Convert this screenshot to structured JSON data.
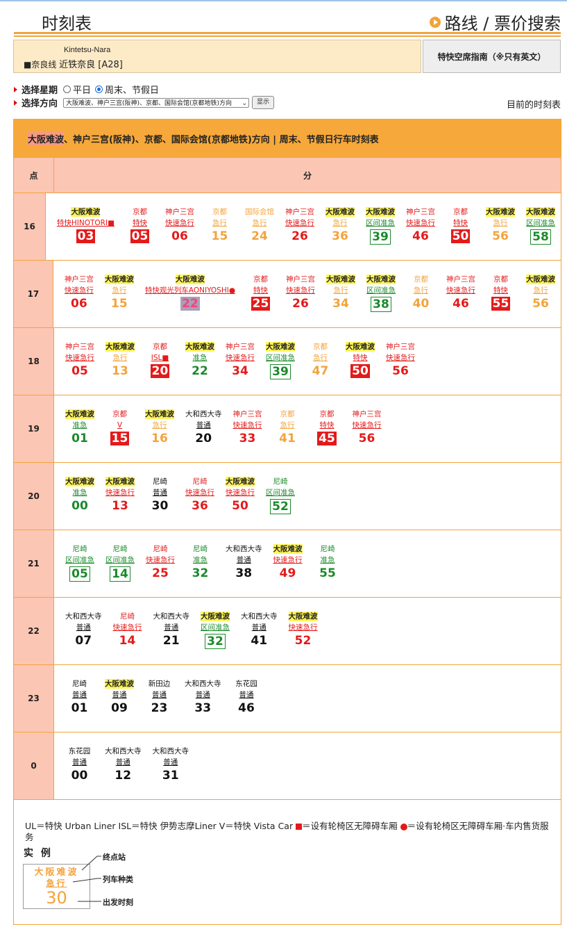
{
  "header": {
    "title": "时刻表",
    "search_link": "路线 / 票价搜索"
  },
  "station": {
    "romaji": "Kintetsu-Nara",
    "line": "■奈良线",
    "name": "近铁奈良 [A28]"
  },
  "seat_button": "特快空席指南（※只有英文）",
  "controls": {
    "day_label": "选择星期",
    "weekday": "平日",
    "weekend": "周末、节假日",
    "direction_label": "选择方向",
    "direction_value": "大阪难波、神户三宫(阪神)、京都、国际会馆(京都地铁)方向",
    "show_button": "显示",
    "current_label": "目前的时刻表"
  },
  "timetable": {
    "title_hl": "大阪难波",
    "title_rest": "、神户三宫(阪神)、京都、国际会馆(京都地铁)方向 | 周末、节假日行车时刻表",
    "hour_header": "点",
    "minute_header": "分",
    "rows": [
      {
        "hour": "16",
        "trains": [
          {
            "dest": "大阪难波",
            "hl": true,
            "type": "特快HINOTORI■",
            "min": "03",
            "c": "red",
            "s": "solidred"
          },
          {
            "dest": "京都",
            "type": "特快",
            "min": "05",
            "c": "red",
            "s": "solidred"
          },
          {
            "dest": "神户三宫",
            "type": "快速急行",
            "min": "06",
            "c": "red"
          },
          {
            "dest": "京都",
            "type": "急行",
            "min": "15",
            "c": "orange"
          },
          {
            "dest": "国际会馆",
            "type": "急行",
            "min": "24",
            "c": "orange"
          },
          {
            "dest": "神户三宫",
            "type": "快速急行",
            "min": "26",
            "c": "red"
          },
          {
            "dest": "大阪难波",
            "hl": true,
            "type": "急行",
            "min": "36",
            "c": "orange"
          },
          {
            "dest": "大阪难波",
            "hl": true,
            "type": "区间准急",
            "min": "39",
            "c": "green",
            "s": "boxg"
          },
          {
            "dest": "神户三宫",
            "type": "快速急行",
            "min": "46",
            "c": "red"
          },
          {
            "dest": "京都",
            "type": "特快",
            "min": "50",
            "c": "red",
            "s": "solidred"
          },
          {
            "dest": "大阪难波",
            "hl": true,
            "type": "急行",
            "min": "56",
            "c": "orange"
          },
          {
            "dest": "大阪难波",
            "hl": true,
            "type": "区间准急",
            "min": "58",
            "c": "green",
            "s": "boxg"
          }
        ]
      },
      {
        "hour": "17",
        "trains": [
          {
            "dest": "神户三宫",
            "type": "快速急行",
            "min": "06",
            "c": "red"
          },
          {
            "dest": "大阪难波",
            "hl": true,
            "type": "急行",
            "min": "15",
            "c": "orange"
          },
          {
            "dest": "大阪难波",
            "hl": true,
            "type": "特快观光列车AONIYOSHI●",
            "min": "22",
            "c": "red",
            "s": "grey"
          },
          {
            "dest": "京都",
            "type": "特快",
            "min": "25",
            "c": "red",
            "s": "solidred"
          },
          {
            "dest": "神户三宫",
            "type": "快速急行",
            "min": "26",
            "c": "red"
          },
          {
            "dest": "大阪难波",
            "hl": true,
            "type": "急行",
            "min": "34",
            "c": "orange"
          },
          {
            "dest": "大阪难波",
            "hl": true,
            "type": "区间准急",
            "min": "38",
            "c": "green",
            "s": "boxg"
          },
          {
            "dest": "京都",
            "type": "急行",
            "min": "40",
            "c": "orange"
          },
          {
            "dest": "神户三宫",
            "type": "快速急行",
            "min": "46",
            "c": "red"
          },
          {
            "dest": "京都",
            "type": "特快",
            "min": "55",
            "c": "red",
            "s": "solidred"
          },
          {
            "dest": "大阪难波",
            "hl": true,
            "type": "急行",
            "min": "56",
            "c": "orange"
          }
        ]
      },
      {
        "hour": "18",
        "trains": [
          {
            "dest": "神户三宫",
            "type": "快速急行",
            "min": "05",
            "c": "red"
          },
          {
            "dest": "大阪难波",
            "hl": true,
            "type": "急行",
            "min": "13",
            "c": "orange"
          },
          {
            "dest": "京都",
            "type": "ISL■",
            "min": "20",
            "c": "red",
            "s": "solidred"
          },
          {
            "dest": "大阪难波",
            "hl": true,
            "type": "准急",
            "min": "22",
            "c": "green"
          },
          {
            "dest": "神户三宫",
            "type": "快速急行",
            "min": "34",
            "c": "red"
          },
          {
            "dest": "大阪难波",
            "hl": true,
            "type": "区间准急",
            "min": "39",
            "c": "green",
            "s": "boxg"
          },
          {
            "dest": "京都",
            "type": "急行",
            "min": "47",
            "c": "orange"
          },
          {
            "dest": "大阪难波",
            "hl": true,
            "type": "特快",
            "min": "50",
            "c": "red",
            "s": "solidred"
          },
          {
            "dest": "神户三宫",
            "type": "快速急行",
            "min": "56",
            "c": "red"
          }
        ]
      },
      {
        "hour": "19",
        "trains": [
          {
            "dest": "大阪难波",
            "hl": true,
            "type": "准急",
            "min": "01",
            "c": "green"
          },
          {
            "dest": "京都",
            "type": "V",
            "min": "15",
            "c": "red",
            "s": "solidred"
          },
          {
            "dest": "大阪难波",
            "hl": true,
            "type": "急行",
            "min": "16",
            "c": "orange"
          },
          {
            "dest": "大和西大寺",
            "type": "普通",
            "min": "20",
            "c": "black"
          },
          {
            "dest": "神户三宫",
            "type": "快速急行",
            "min": "33",
            "c": "red"
          },
          {
            "dest": "京都",
            "type": "急行",
            "min": "41",
            "c": "orange"
          },
          {
            "dest": "京都",
            "type": "特快",
            "min": "45",
            "c": "red",
            "s": "solidred"
          },
          {
            "dest": "神户三宫",
            "type": "快速急行",
            "min": "56",
            "c": "red"
          }
        ]
      },
      {
        "hour": "20",
        "trains": [
          {
            "dest": "大阪难波",
            "hl": true,
            "type": "准急",
            "min": "00",
            "c": "green"
          },
          {
            "dest": "大阪难波",
            "hl": true,
            "type": "快速急行",
            "min": "13",
            "c": "red"
          },
          {
            "dest": "尼崎",
            "type": "普通",
            "min": "30",
            "c": "black"
          },
          {
            "dest": "尼崎",
            "type": "快速急行",
            "min": "36",
            "c": "red"
          },
          {
            "dest": "大阪难波",
            "hl": true,
            "type": "快速急行",
            "min": "50",
            "c": "red"
          },
          {
            "dest": "尼崎",
            "type": "区间准急",
            "min": "52",
            "c": "green",
            "s": "boxg"
          }
        ]
      },
      {
        "hour": "21",
        "trains": [
          {
            "dest": "尼崎",
            "type": "区间准急",
            "min": "05",
            "c": "green",
            "s": "boxg"
          },
          {
            "dest": "尼崎",
            "type": "区间准急",
            "min": "14",
            "c": "green",
            "s": "boxg"
          },
          {
            "dest": "尼崎",
            "type": "快速急行",
            "min": "25",
            "c": "red"
          },
          {
            "dest": "尼崎",
            "type": "准急",
            "min": "32",
            "c": "green"
          },
          {
            "dest": "大和西大寺",
            "type": "普通",
            "min": "38",
            "c": "black"
          },
          {
            "dest": "大阪难波",
            "hl": true,
            "type": "快速急行",
            "min": "49",
            "c": "red"
          },
          {
            "dest": "尼崎",
            "type": "准急",
            "min": "55",
            "c": "green"
          }
        ]
      },
      {
        "hour": "22",
        "trains": [
          {
            "dest": "大和西大寺",
            "type": "普通",
            "min": "07",
            "c": "black"
          },
          {
            "dest": "尼崎",
            "type": "快速急行",
            "min": "14",
            "c": "red"
          },
          {
            "dest": "大和西大寺",
            "type": "普通",
            "min": "21",
            "c": "black"
          },
          {
            "dest": "大阪难波",
            "hl": true,
            "type": "区间准急",
            "min": "32",
            "c": "green",
            "s": "boxg"
          },
          {
            "dest": "大和西大寺",
            "type": "普通",
            "min": "41",
            "c": "black"
          },
          {
            "dest": "大阪难波",
            "hl": true,
            "type": "快速急行",
            "min": "52",
            "c": "red"
          }
        ]
      },
      {
        "hour": "23",
        "trains": [
          {
            "dest": "尼崎",
            "type": "普通",
            "min": "01",
            "c": "black"
          },
          {
            "dest": "大阪难波",
            "hl": true,
            "type": "普通",
            "min": "09",
            "c": "black"
          },
          {
            "dest": "新田边",
            "type": "普通",
            "min": "23",
            "c": "black"
          },
          {
            "dest": "大和西大寺",
            "type": "普通",
            "min": "33",
            "c": "black"
          },
          {
            "dest": "东花园",
            "type": "普通",
            "min": "46",
            "c": "black"
          }
        ]
      },
      {
        "hour": "0",
        "trains": [
          {
            "dest": "东花园",
            "type": "普通",
            "min": "00",
            "c": "black"
          },
          {
            "dest": "大和西大寺",
            "type": "普通",
            "min": "12",
            "c": "black"
          },
          {
            "dest": "大和西大寺",
            "type": "普通",
            "min": "31",
            "c": "black"
          }
        ]
      }
    ]
  },
  "legend": {
    "abbrev": "UL＝特快 Urban Liner ISL＝特快 伊势志摩Liner V＝特快 Vista Car",
    "square_note": "＝设有轮椅区无障碍车厢",
    "circle_note": "＝设有轮椅区无障碍车厢·车内售货服务",
    "example_title": "实 例",
    "example_dest": "大阪难波",
    "example_type": "急行",
    "example_min": "30",
    "label_terminal": "终点站",
    "label_type": "列车种类",
    "label_departure": "出发时刻"
  }
}
